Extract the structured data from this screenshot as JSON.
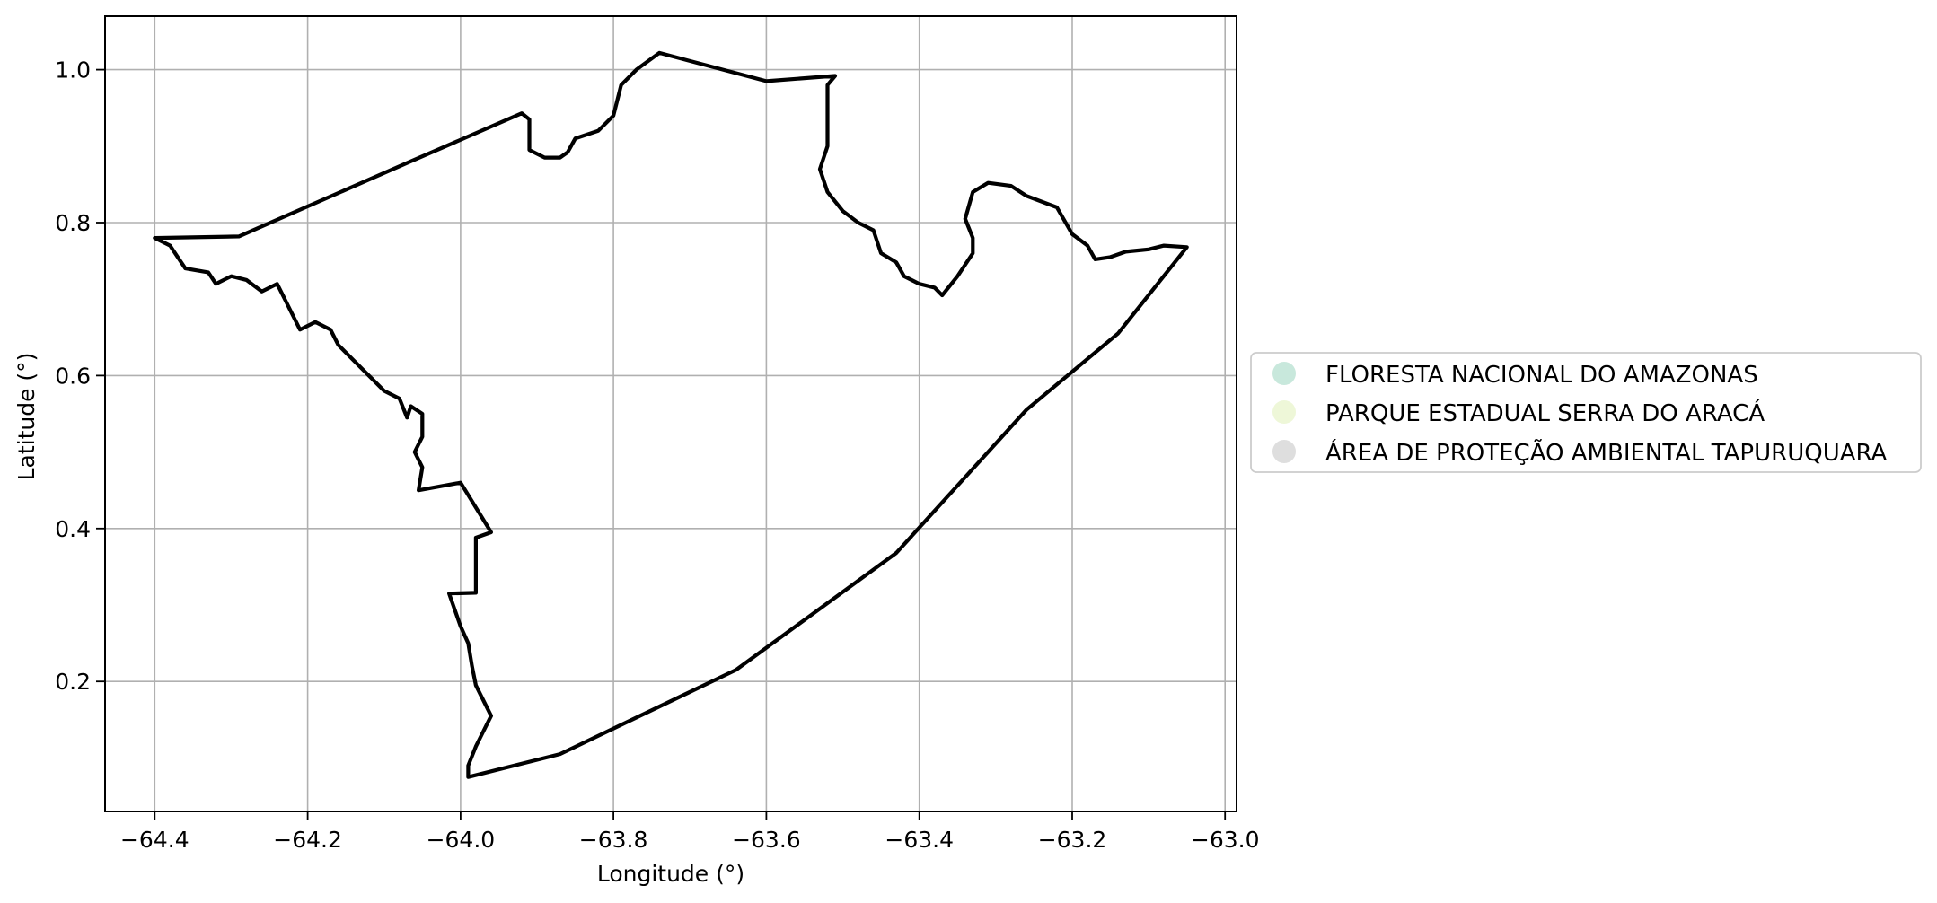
{
  "chart_data": {
    "type": "map",
    "xlabel": "Longitude (°)",
    "ylabel": "Latitude (°)",
    "xlim": [
      -64.465,
      -62.985
    ],
    "ylim": [
      0.03,
      1.07
    ],
    "grid": true,
    "x_ticks": [
      -64.4,
      -64.2,
      -64.0,
      -63.8,
      -63.6,
      -63.4,
      -63.2,
      -63.0
    ],
    "x_tick_labels": [
      "−64.4",
      "−64.2",
      "−64.0",
      "−63.8",
      "−63.6",
      "−63.4",
      "−63.2",
      "−63.0"
    ],
    "y_ticks": [
      0.2,
      0.4,
      0.6,
      0.8,
      1.0
    ],
    "y_tick_labels": [
      "0.2",
      "0.4",
      "0.6",
      "0.8",
      "1.0"
    ],
    "legend": {
      "placement": "center-left-outside",
      "entries": [
        {
          "label": "FLORESTA NACIONAL DO AMAZONAS",
          "color": "#c8e8dc"
        },
        {
          "label": "PARQUE ESTADUAL SERRA DO ARACÁ",
          "color": "#eef7d8"
        },
        {
          "label": "ÁREA DE PROTEÇÃO AMBIENTAL  TAPURUQUARA",
          "color": "#dedede"
        }
      ]
    },
    "boundary": {
      "stroke": "#000000",
      "points": [
        [
          -64.4,
          0.78
        ],
        [
          -64.29,
          0.782
        ],
        [
          -64.07,
          0.878
        ],
        [
          -63.92,
          0.943
        ],
        [
          -63.91,
          0.935
        ],
        [
          -63.91,
          0.895
        ],
        [
          -63.89,
          0.885
        ],
        [
          -63.87,
          0.885
        ],
        [
          -63.86,
          0.892
        ],
        [
          -63.85,
          0.91
        ],
        [
          -63.82,
          0.92
        ],
        [
          -63.8,
          0.94
        ],
        [
          -63.79,
          0.98
        ],
        [
          -63.77,
          1.0
        ],
        [
          -63.74,
          1.022
        ],
        [
          -63.6,
          0.985
        ],
        [
          -63.51,
          0.992
        ],
        [
          -63.52,
          0.98
        ],
        [
          -63.52,
          0.9
        ],
        [
          -63.53,
          0.87
        ],
        [
          -63.52,
          0.84
        ],
        [
          -63.5,
          0.815
        ],
        [
          -63.48,
          0.8
        ],
        [
          -63.46,
          0.79
        ],
        [
          -63.45,
          0.76
        ],
        [
          -63.43,
          0.748
        ],
        [
          -63.42,
          0.73
        ],
        [
          -63.4,
          0.72
        ],
        [
          -63.38,
          0.715
        ],
        [
          -63.37,
          0.705
        ],
        [
          -63.35,
          0.73
        ],
        [
          -63.33,
          0.76
        ],
        [
          -63.33,
          0.78
        ],
        [
          -63.34,
          0.805
        ],
        [
          -63.33,
          0.84
        ],
        [
          -63.31,
          0.852
        ],
        [
          -63.28,
          0.848
        ],
        [
          -63.26,
          0.835
        ],
        [
          -63.22,
          0.82
        ],
        [
          -63.2,
          0.785
        ],
        [
          -63.18,
          0.77
        ],
        [
          -63.17,
          0.752
        ],
        [
          -63.15,
          0.755
        ],
        [
          -63.13,
          0.762
        ],
        [
          -63.1,
          0.765
        ],
        [
          -63.08,
          0.77
        ],
        [
          -63.05,
          0.768
        ],
        [
          -63.14,
          0.655
        ],
        [
          -63.26,
          0.555
        ],
        [
          -63.43,
          0.368
        ],
        [
          -63.64,
          0.215
        ],
        [
          -63.87,
          0.105
        ],
        [
          -63.99,
          0.075
        ],
        [
          -63.99,
          0.09
        ],
        [
          -63.98,
          0.115
        ],
        [
          -63.97,
          0.135
        ],
        [
          -63.96,
          0.155
        ],
        [
          -63.97,
          0.175
        ],
        [
          -63.98,
          0.195
        ],
        [
          -63.985,
          0.22
        ],
        [
          -63.99,
          0.25
        ],
        [
          -64.0,
          0.272
        ],
        [
          -64.015,
          0.315
        ],
        [
          -63.98,
          0.316
        ],
        [
          -63.98,
          0.388
        ],
        [
          -63.96,
          0.395
        ],
        [
          -64.0,
          0.46
        ],
        [
          -64.055,
          0.45
        ],
        [
          -64.05,
          0.48
        ],
        [
          -64.06,
          0.5
        ],
        [
          -64.05,
          0.52
        ],
        [
          -64.05,
          0.55
        ],
        [
          -64.065,
          0.56
        ],
        [
          -64.07,
          0.545
        ],
        [
          -64.08,
          0.57
        ],
        [
          -64.1,
          0.58
        ],
        [
          -64.12,
          0.6
        ],
        [
          -64.14,
          0.62
        ],
        [
          -64.16,
          0.64
        ],
        [
          -64.17,
          0.66
        ],
        [
          -64.19,
          0.67
        ],
        [
          -64.21,
          0.66
        ],
        [
          -64.22,
          0.68
        ],
        [
          -64.23,
          0.7
        ],
        [
          -64.24,
          0.72
        ],
        [
          -64.26,
          0.71
        ],
        [
          -64.28,
          0.725
        ],
        [
          -64.3,
          0.73
        ],
        [
          -64.32,
          0.72
        ],
        [
          -64.33,
          0.735
        ],
        [
          -64.36,
          0.74
        ],
        [
          -64.37,
          0.755
        ],
        [
          -64.38,
          0.77
        ],
        [
          -64.4,
          0.78
        ]
      ]
    }
  }
}
